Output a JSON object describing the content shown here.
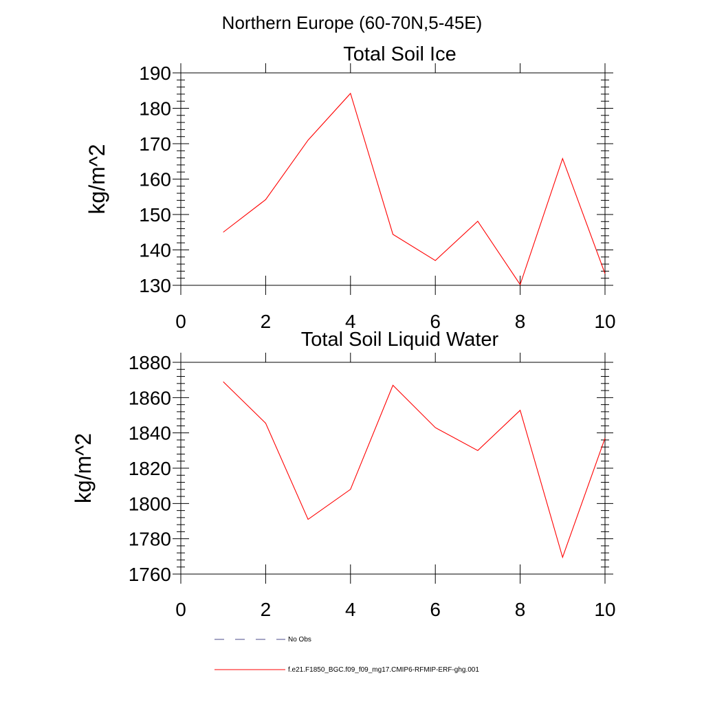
{
  "figure_title": "Northern Europe (60-70N,5-45E)",
  "colors": {
    "model": "#ff0000",
    "obs": "#4a4a8a",
    "axis": "#000000"
  },
  "legend": {
    "obs_label": "No Obs",
    "model_label": "f.e21.F1850_BGC.f09_f09_mg17.CMIP6-RFMIP-ERF-ghg.001"
  },
  "chart_data": [
    {
      "type": "line",
      "title": "Total Soil Ice",
      "xlabel": "",
      "ylabel": "kg/m^2",
      "xlim": [
        0,
        10
      ],
      "ylim": [
        130,
        190
      ],
      "x_ticks": [
        0,
        2,
        4,
        6,
        8,
        10
      ],
      "y_ticks": [
        130,
        140,
        150,
        160,
        170,
        180,
        190
      ],
      "y_minor_step": 2,
      "x_minor_step": 1,
      "grid": false,
      "series": [
        {
          "name": "f.e21.F1850_BGC.f09_f09_mg17.CMIP6-RFMIP-ERF-ghg.001",
          "x": [
            1,
            2,
            3,
            4,
            5,
            6,
            7,
            8,
            9,
            10
          ],
          "values": [
            145,
            154.2,
            171,
            184.2,
            144.4,
            137,
            148.1,
            130.2,
            165.8,
            133.3
          ]
        }
      ]
    },
    {
      "type": "line",
      "title": "Total Soil Liquid Water",
      "xlabel": "",
      "ylabel": "kg/m^2",
      "xlim": [
        0,
        10
      ],
      "ylim": [
        1760,
        1880
      ],
      "x_ticks": [
        0,
        2,
        4,
        6,
        8,
        10
      ],
      "y_ticks": [
        1760,
        1780,
        1800,
        1820,
        1840,
        1860,
        1880
      ],
      "y_minor_step": 4,
      "x_minor_step": 1,
      "grid": false,
      "series": [
        {
          "name": "f.e21.F1850_BGC.f09_f09_mg17.CMIP6-RFMIP-ERF-ghg.001",
          "x": [
            1,
            2,
            3,
            4,
            5,
            6,
            7,
            8,
            9,
            10
          ],
          "values": [
            1869,
            1845.5,
            1791,
            1808,
            1867,
            1843,
            1830,
            1852.8,
            1769.5,
            1837
          ]
        }
      ]
    }
  ]
}
